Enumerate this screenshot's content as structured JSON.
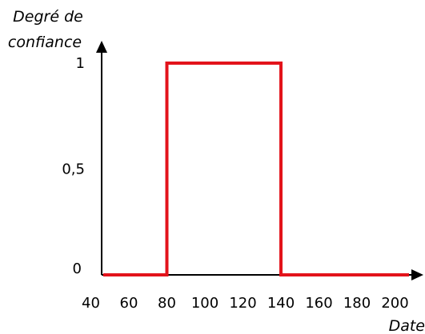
{
  "chart_data": {
    "type": "line",
    "title": "",
    "ylabel_lines": [
      "Degré de",
      "confiance"
    ],
    "xlabel": "Date",
    "x_ticks": [
      {
        "value": 40,
        "label": "40"
      },
      {
        "value": 60,
        "label": "60"
      },
      {
        "value": 80,
        "label": "80"
      },
      {
        "value": 100,
        "label": "100"
      },
      {
        "value": 120,
        "label": "120"
      },
      {
        "value": 140,
        "label": "140"
      },
      {
        "value": 160,
        "label": "160"
      },
      {
        "value": 180,
        "label": "180"
      },
      {
        "value": 200,
        "label": "200"
      }
    ],
    "y_ticks": [
      {
        "value": 0,
        "label": "0"
      },
      {
        "value": 0.5,
        "label": "0,5"
      },
      {
        "value": 1,
        "label": "1"
      }
    ],
    "series": [
      {
        "x": [
          30,
          80,
          80,
          140,
          140,
          210
        ],
        "y": [
          0,
          0,
          1,
          1,
          0,
          0
        ]
      }
    ],
    "series_color": "#e3131b",
    "axis_color": "#000000",
    "grid": false,
    "legend": "none"
  }
}
